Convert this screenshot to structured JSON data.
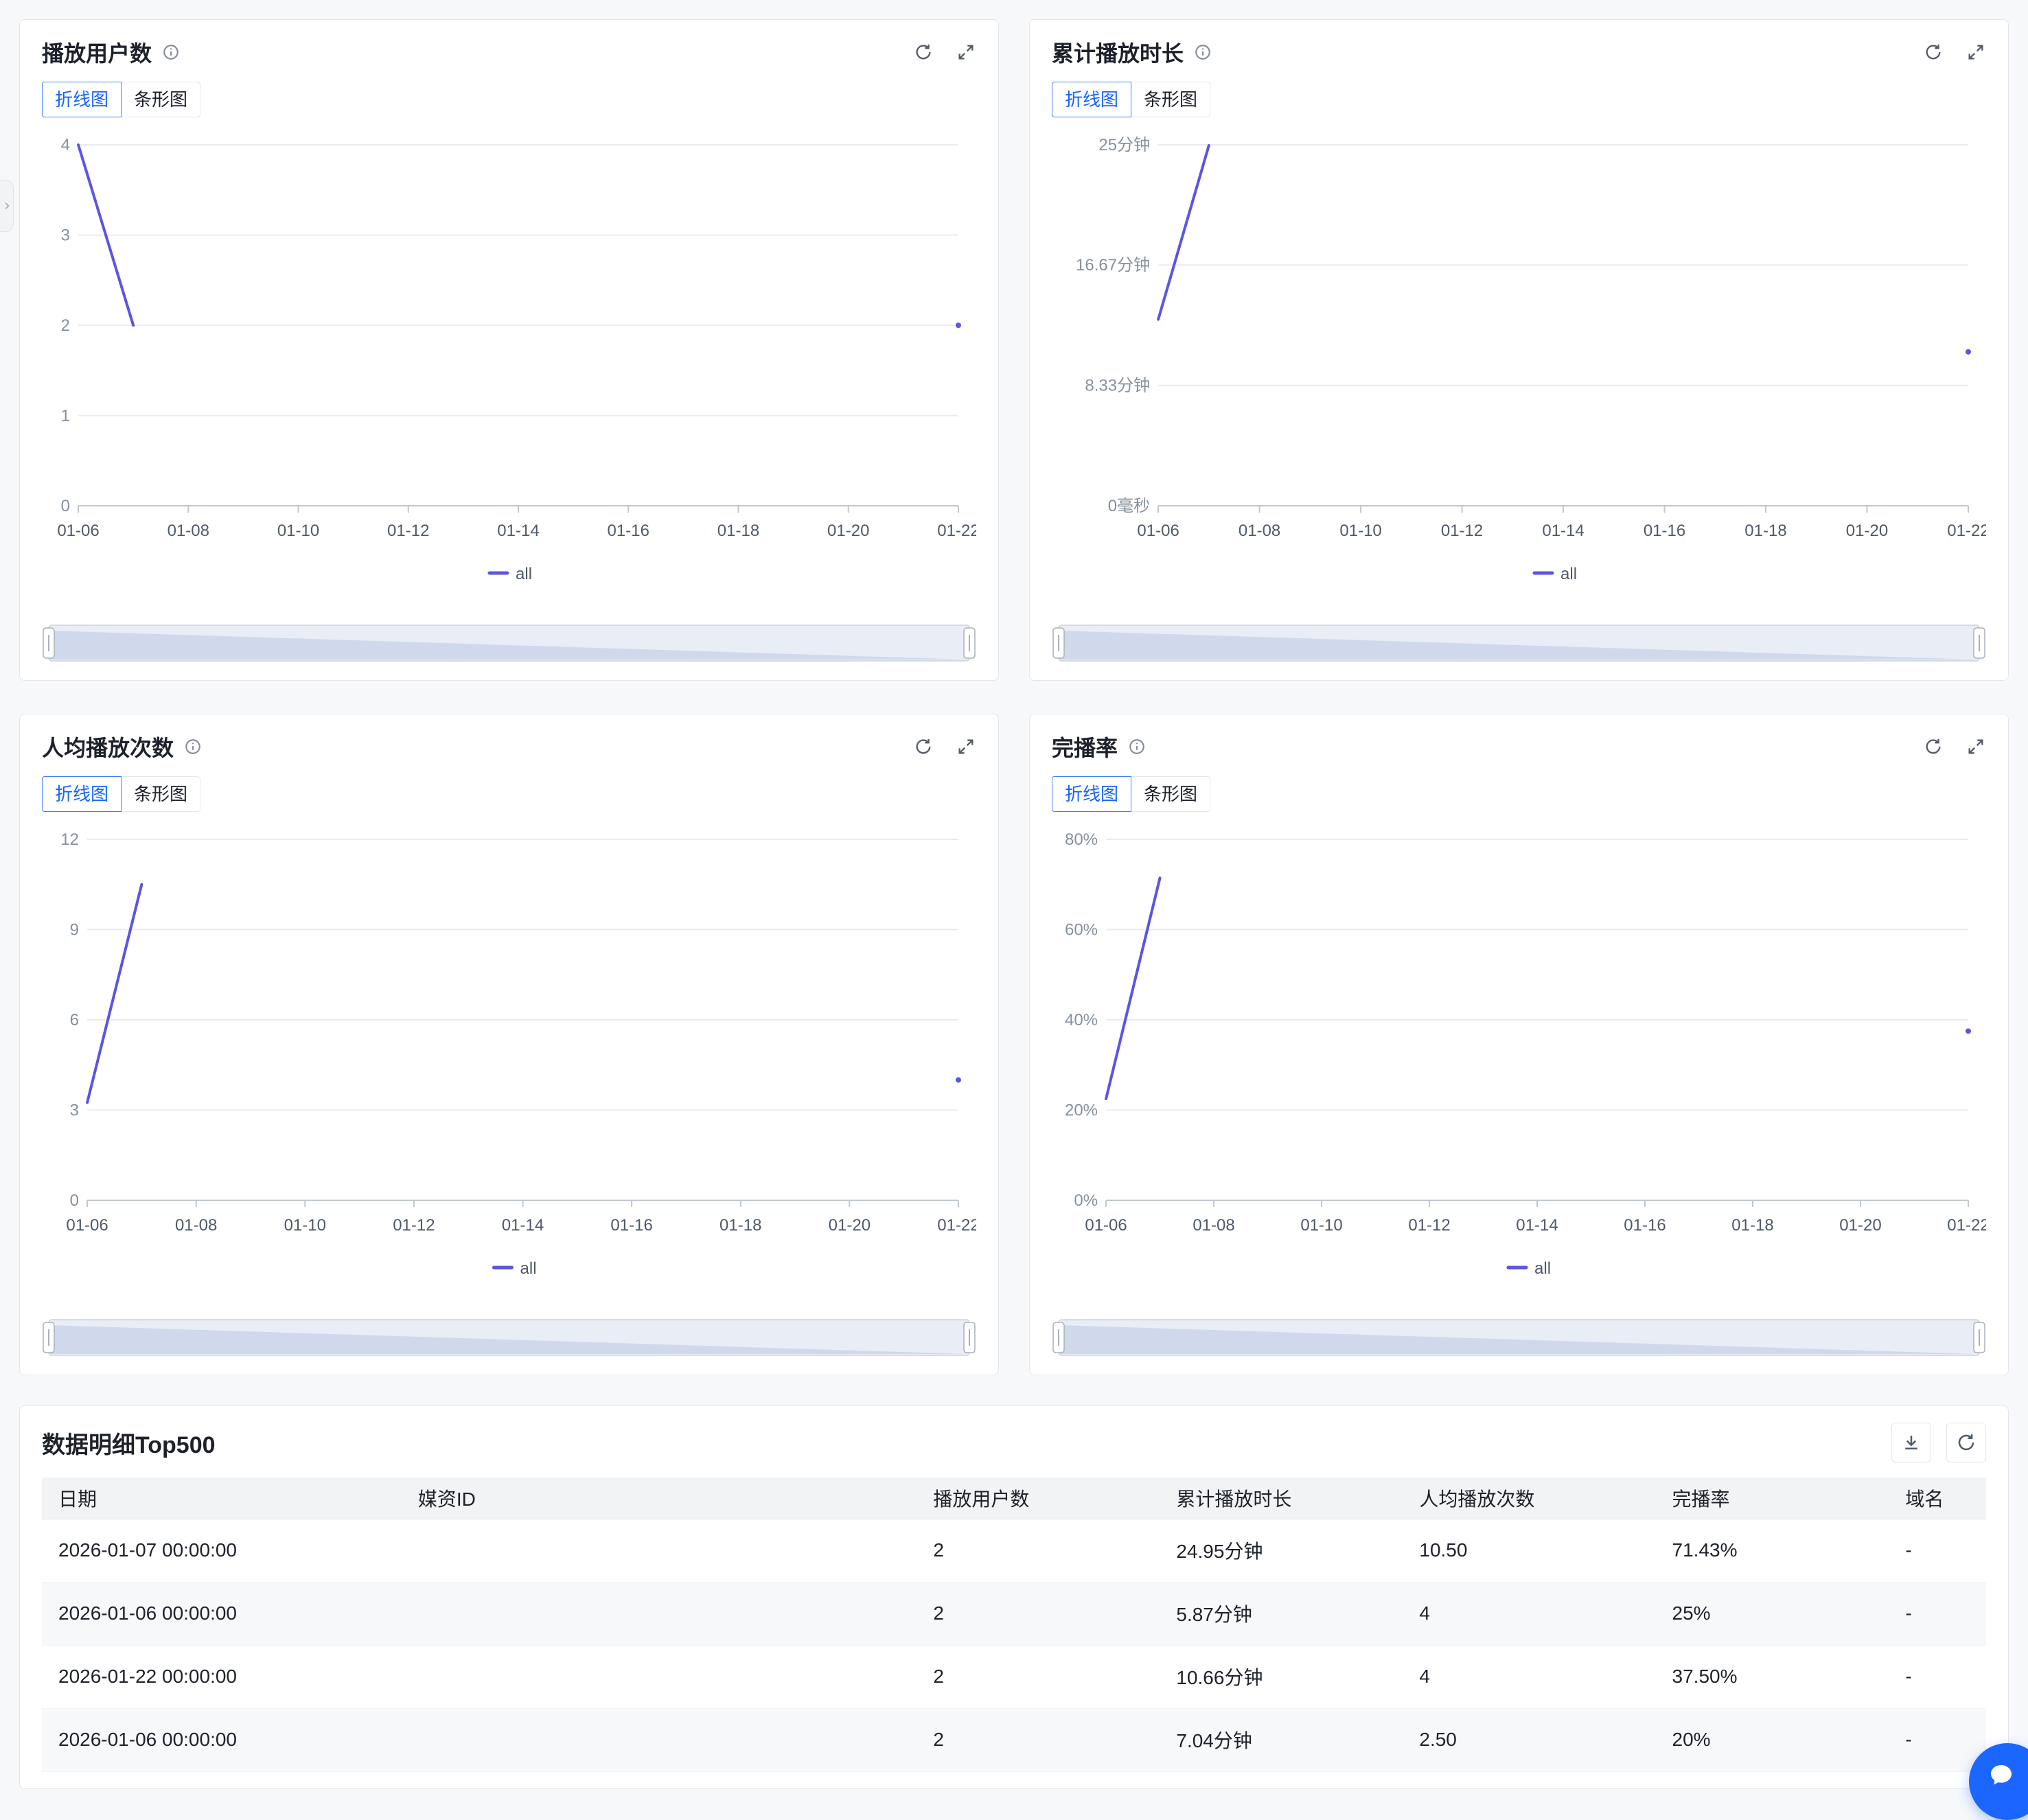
{
  "colors": {
    "line": "#5B55E3",
    "accent": "#1664FF"
  },
  "icons": {
    "card_info": "info-icon",
    "card_refresh": "refresh-icon",
    "card_expand": "expand-icon",
    "detail_download": "download-icon",
    "detail_refresh": "refresh-icon",
    "floating": "chat-icon",
    "drawer": "chevron-right-icon"
  },
  "chart_data": [
    {
      "type": "line",
      "title": "播放用户数",
      "tabs": [
        "折线图",
        "条形图"
      ],
      "active_tab": "折线图",
      "legend": "all",
      "x_ticks": [
        "01-06",
        "01-08",
        "01-10",
        "01-12",
        "01-14",
        "01-16",
        "01-18",
        "01-20",
        "01-22"
      ],
      "x_range": [
        0,
        16
      ],
      "ylim": [
        0,
        4
      ],
      "y_ticks": [
        {
          "v": 0,
          "label": "0"
        },
        {
          "v": 1,
          "label": "1"
        },
        {
          "v": 2,
          "label": "2"
        },
        {
          "v": 3,
          "label": "3"
        },
        {
          "v": 4,
          "label": "4"
        }
      ],
      "series": [
        {
          "name": "all",
          "segments": [
            [
              [
                0,
                4
              ],
              [
                1,
                2
              ]
            ]
          ],
          "points": [
            [
              16,
              2
            ]
          ]
        }
      ]
    },
    {
      "type": "line",
      "title": "累计播放时长",
      "tabs": [
        "折线图",
        "条形图"
      ],
      "active_tab": "折线图",
      "legend": "all",
      "x_ticks": [
        "01-06",
        "01-08",
        "01-10",
        "01-12",
        "01-14",
        "01-16",
        "01-18",
        "01-20",
        "01-22"
      ],
      "x_range": [
        0,
        16
      ],
      "ylim": [
        0,
        25
      ],
      "y_ticks": [
        {
          "v": 0,
          "label": "0毫秒"
        },
        {
          "v": 8.33,
          "label": "8.33分钟"
        },
        {
          "v": 16.67,
          "label": "16.67分钟"
        },
        {
          "v": 25,
          "label": "25分钟"
        }
      ],
      "series": [
        {
          "name": "all",
          "segments": [
            [
              [
                0,
                12.91
              ],
              [
                1,
                24.95
              ]
            ]
          ],
          "points": [
            [
              16,
              10.66
            ]
          ]
        }
      ]
    },
    {
      "type": "line",
      "title": "人均播放次数",
      "tabs": [
        "折线图",
        "条形图"
      ],
      "active_tab": "折线图",
      "legend": "all",
      "x_ticks": [
        "01-06",
        "01-08",
        "01-10",
        "01-12",
        "01-14",
        "01-16",
        "01-18",
        "01-20",
        "01-22"
      ],
      "x_range": [
        0,
        16
      ],
      "ylim": [
        0,
        12
      ],
      "y_ticks": [
        {
          "v": 0,
          "label": "0"
        },
        {
          "v": 3,
          "label": "3"
        },
        {
          "v": 6,
          "label": "6"
        },
        {
          "v": 9,
          "label": "9"
        },
        {
          "v": 12,
          "label": "12"
        }
      ],
      "series": [
        {
          "name": "all",
          "segments": [
            [
              [
                0,
                3.25
              ],
              [
                1,
                10.5
              ]
            ]
          ],
          "points": [
            [
              16,
              4
            ]
          ]
        }
      ]
    },
    {
      "type": "line",
      "title": "完播率",
      "tabs": [
        "折线图",
        "条形图"
      ],
      "active_tab": "折线图",
      "legend": "all",
      "x_ticks": [
        "01-06",
        "01-08",
        "01-10",
        "01-12",
        "01-14",
        "01-16",
        "01-18",
        "01-20",
        "01-22"
      ],
      "x_range": [
        0,
        16
      ],
      "ylim": [
        0,
        80
      ],
      "y_ticks": [
        {
          "v": 0,
          "label": "0%"
        },
        {
          "v": 20,
          "label": "20%"
        },
        {
          "v": 40,
          "label": "40%"
        },
        {
          "v": 60,
          "label": "60%"
        },
        {
          "v": 80,
          "label": "80%"
        }
      ],
      "series": [
        {
          "name": "all",
          "segments": [
            [
              [
                0,
                22.5
              ],
              [
                1,
                71.43
              ]
            ]
          ],
          "points": [
            [
              16,
              37.5
            ]
          ]
        }
      ]
    }
  ],
  "detail": {
    "title": "数据明细Top500"
  },
  "table": {
    "headers": [
      "日期",
      "媒资ID",
      "播放用户数",
      "累计播放时长",
      "人均播放次数",
      "完播率",
      "域名"
    ],
    "rows": [
      [
        "2026-01-07 00:00:00",
        "",
        "2",
        "24.95分钟",
        "10.50",
        "71.43%",
        "-"
      ],
      [
        "2026-01-06 00:00:00",
        "",
        "2",
        "5.87分钟",
        "4",
        "25%",
        "-"
      ],
      [
        "2026-01-22 00:00:00",
        "",
        "2",
        "10.66分钟",
        "4",
        "37.50%",
        "-"
      ],
      [
        "2026-01-06 00:00:00",
        "",
        "2",
        "7.04分钟",
        "2.50",
        "20%",
        "-"
      ]
    ]
  }
}
